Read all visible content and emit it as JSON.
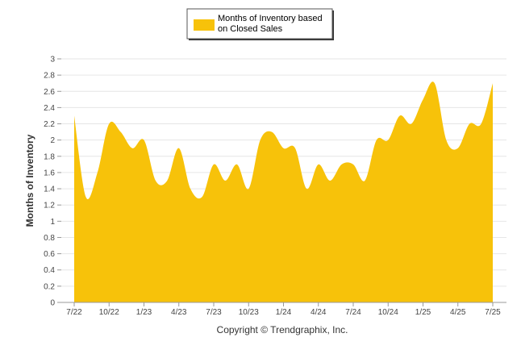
{
  "chart_data": {
    "type": "area",
    "series": [
      {
        "name": "Months of Inventory based on Closed Sales",
        "x": [
          "7/22",
          "8/22",
          "9/22",
          "10/22",
          "11/22",
          "12/22",
          "1/23",
          "2/23",
          "3/23",
          "4/23",
          "5/23",
          "6/23",
          "7/23",
          "8/23",
          "9/23",
          "10/23",
          "11/23",
          "12/23",
          "1/24",
          "2/24",
          "3/24",
          "4/24",
          "5/24",
          "6/24",
          "7/24",
          "8/24",
          "9/24",
          "10/24",
          "11/24",
          "12/24",
          "1/25",
          "2/25",
          "3/25",
          "4/25",
          "5/25",
          "6/25",
          "7/25"
        ],
        "values": [
          2.3,
          1.3,
          1.6,
          2.2,
          2.1,
          1.9,
          2.0,
          1.5,
          1.5,
          1.9,
          1.4,
          1.3,
          1.7,
          1.5,
          1.7,
          1.4,
          2.0,
          2.1,
          1.9,
          1.9,
          1.4,
          1.7,
          1.5,
          1.7,
          1.7,
          1.5,
          2.0,
          2.0,
          2.3,
          2.2,
          2.5,
          2.7,
          2.0,
          1.9,
          2.2,
          2.2,
          2.7
        ]
      }
    ],
    "x_tick_labels": [
      "7/22",
      "10/22",
      "1/23",
      "4/23",
      "7/23",
      "10/23",
      "1/24",
      "4/24",
      "7/24",
      "10/24",
      "1/25",
      "4/25",
      "7/25"
    ],
    "y_ticks": [
      "0",
      "0.2",
      "0.4",
      "0.6",
      "0.8",
      "1",
      "1.2",
      "1.4",
      "1.6",
      "1.8",
      "2",
      "2.2",
      "2.4",
      "2.6",
      "2.8",
      "3"
    ],
    "ylim": [
      0,
      3
    ],
    "ylabel": "Months of Inventory",
    "xlabel": "",
    "legend_label_line1": "Months of Inventory based",
    "legend_label_line2": "on Closed Sales",
    "legend_position": "top-center",
    "grid": true,
    "colors": {
      "fill": "#f7c20a",
      "grid": "#e6e6e6",
      "axis": "#999999"
    }
  },
  "footer": {
    "copyright": "Copyright © Trendgraphix, Inc."
  }
}
